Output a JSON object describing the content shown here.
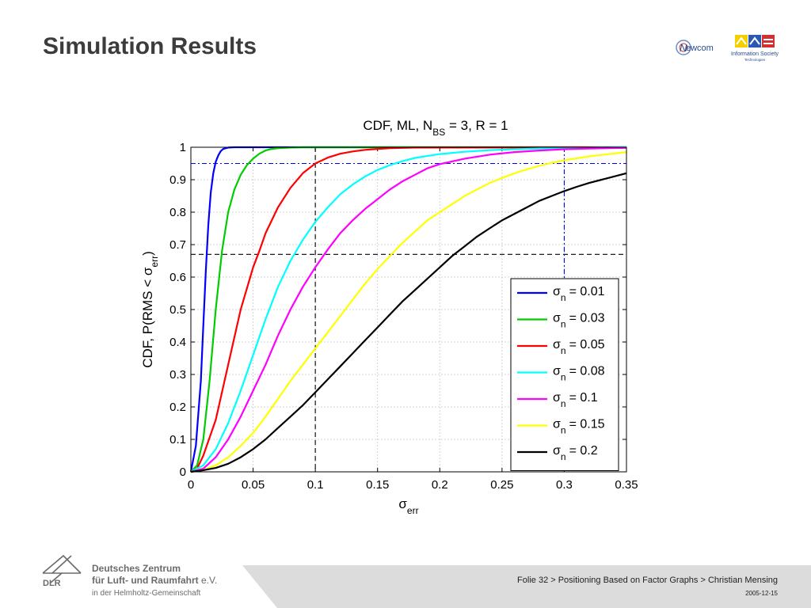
{
  "slide": {
    "title": "Simulation Results",
    "footer": "Folie 32 > Positioning Based on Factor Graphs > Christian Mensing",
    "date": "2005-12-15"
  },
  "logos": {
    "newcom_label": "ewcom",
    "newcom_initial": "N",
    "ist_line1": "Information Society",
    "ist_line2": "Technologies"
  },
  "dlr": {
    "abbr": "DLR",
    "line1": "Deutsches Zentrum",
    "line2": "für Luft- und Raumfahrt",
    "line2_suffix": " e.V.",
    "line3": "in der Helmholtz-Gemeinschaft"
  },
  "colors": {
    "title": "#3c3c3c",
    "footer_band": "#dcdcdc"
  },
  "chart_data": {
    "type": "line",
    "title_parts": [
      "CDF, ML, N",
      "BS",
      " = 3, R = 1"
    ],
    "xlabel_parts": [
      "σ",
      "err"
    ],
    "ylabel_parts": [
      "CDF, P(RMS < σ",
      "err",
      ")"
    ],
    "xlim": [
      0,
      0.35
    ],
    "ylim": [
      0,
      1
    ],
    "xticks": [
      0,
      0.05,
      0.1,
      0.15,
      0.2,
      0.25,
      0.3,
      0.35
    ],
    "xtick_labels": [
      "0",
      "0.05",
      "0.1",
      "0.15",
      "0.2",
      "0.25",
      "0.3",
      "0.35"
    ],
    "yticks": [
      0,
      0.1,
      0.2,
      0.3,
      0.4,
      0.5,
      0.6,
      0.7,
      0.8,
      0.9,
      1
    ],
    "ytick_labels": [
      "0",
      "0.1",
      "0.2",
      "0.3",
      "0.4",
      "0.5",
      "0.6",
      "0.7",
      "0.8",
      "0.9",
      "1"
    ],
    "grid": true,
    "legend_position": "lower-right",
    "legend_symbol": "σ",
    "legend_subscript": "n",
    "series": [
      {
        "name": "= 0.01",
        "color": "#0000ff",
        "x": [
          0,
          0.004,
          0.008,
          0.01,
          0.012,
          0.014,
          0.016,
          0.018,
          0.02,
          0.022,
          0.024,
          0.026,
          0.03,
          0.035,
          0.05,
          0.35
        ],
        "y": [
          0,
          0.08,
          0.28,
          0.45,
          0.62,
          0.76,
          0.86,
          0.92,
          0.955,
          0.975,
          0.988,
          0.995,
          0.999,
          1,
          1,
          1
        ]
      },
      {
        "name": "= 0.03",
        "color": "#00cc00",
        "x": [
          0,
          0.005,
          0.01,
          0.015,
          0.02,
          0.025,
          0.03,
          0.035,
          0.04,
          0.045,
          0.05,
          0.055,
          0.06,
          0.065,
          0.07,
          0.08,
          0.09,
          0.1,
          0.35
        ],
        "y": [
          0,
          0.02,
          0.1,
          0.28,
          0.5,
          0.68,
          0.8,
          0.87,
          0.915,
          0.945,
          0.965,
          0.98,
          0.99,
          0.995,
          0.997,
          0.999,
          1,
          1,
          1
        ]
      },
      {
        "name": "= 0.05",
        "color": "#ff0000",
        "x": [
          0,
          0.005,
          0.01,
          0.02,
          0.03,
          0.04,
          0.05,
          0.055,
          0.06,
          0.07,
          0.08,
          0.09,
          0.1,
          0.11,
          0.12,
          0.13,
          0.14,
          0.15,
          0.16,
          0.17,
          0.18,
          0.35
        ],
        "y": [
          0,
          0.01,
          0.05,
          0.16,
          0.33,
          0.5,
          0.63,
          0.68,
          0.735,
          0.815,
          0.875,
          0.92,
          0.95,
          0.968,
          0.98,
          0.987,
          0.992,
          0.995,
          0.997,
          0.998,
          0.999,
          1
        ]
      },
      {
        "name": "= 0.08",
        "color": "#00ffff",
        "x": [
          0,
          0.01,
          0.02,
          0.03,
          0.04,
          0.05,
          0.06,
          0.07,
          0.08,
          0.09,
          0.1,
          0.11,
          0.12,
          0.13,
          0.14,
          0.15,
          0.16,
          0.17,
          0.18,
          0.2,
          0.22,
          0.24,
          0.26,
          0.28,
          0.3,
          0.35
        ],
        "y": [
          0,
          0.02,
          0.07,
          0.15,
          0.25,
          0.36,
          0.47,
          0.57,
          0.65,
          0.715,
          0.77,
          0.815,
          0.855,
          0.885,
          0.91,
          0.93,
          0.945,
          0.957,
          0.967,
          0.979,
          0.986,
          0.991,
          0.994,
          0.996,
          0.998,
          1
        ]
      },
      {
        "name": "= 0.1",
        "color": "#ff00ff",
        "x": [
          0,
          0.01,
          0.02,
          0.03,
          0.04,
          0.05,
          0.06,
          0.07,
          0.08,
          0.09,
          0.1,
          0.11,
          0.12,
          0.13,
          0.14,
          0.15,
          0.16,
          0.17,
          0.18,
          0.19,
          0.2,
          0.22,
          0.24,
          0.26,
          0.28,
          0.3,
          0.32,
          0.35
        ],
        "y": [
          0,
          0.01,
          0.045,
          0.1,
          0.17,
          0.25,
          0.33,
          0.42,
          0.5,
          0.57,
          0.63,
          0.685,
          0.735,
          0.775,
          0.81,
          0.84,
          0.87,
          0.895,
          0.915,
          0.935,
          0.948,
          0.965,
          0.977,
          0.985,
          0.99,
          0.994,
          0.996,
          0.998
        ]
      },
      {
        "name": "= 0.15",
        "color": "#ffff00",
        "x": [
          0,
          0.01,
          0.02,
          0.03,
          0.04,
          0.05,
          0.06,
          0.07,
          0.08,
          0.09,
          0.1,
          0.11,
          0.12,
          0.13,
          0.14,
          0.15,
          0.16,
          0.17,
          0.18,
          0.19,
          0.2,
          0.21,
          0.22,
          0.23,
          0.24,
          0.25,
          0.26,
          0.27,
          0.28,
          0.29,
          0.3,
          0.32,
          0.35
        ],
        "y": [
          0,
          0.005,
          0.02,
          0.045,
          0.08,
          0.12,
          0.17,
          0.225,
          0.28,
          0.33,
          0.38,
          0.43,
          0.48,
          0.53,
          0.58,
          0.625,
          0.665,
          0.705,
          0.74,
          0.775,
          0.8,
          0.825,
          0.85,
          0.87,
          0.89,
          0.905,
          0.92,
          0.932,
          0.943,
          0.952,
          0.96,
          0.972,
          0.985
        ]
      },
      {
        "name": "= 0.2",
        "color": "#000000",
        "x": [
          0,
          0.01,
          0.02,
          0.03,
          0.04,
          0.05,
          0.06,
          0.07,
          0.08,
          0.09,
          0.1,
          0.11,
          0.12,
          0.13,
          0.14,
          0.15,
          0.16,
          0.17,
          0.18,
          0.19,
          0.2,
          0.21,
          0.22,
          0.23,
          0.24,
          0.25,
          0.26,
          0.27,
          0.28,
          0.29,
          0.3,
          0.31,
          0.32,
          0.33,
          0.34,
          0.35
        ],
        "y": [
          0,
          0.005,
          0.012,
          0.025,
          0.045,
          0.07,
          0.1,
          0.135,
          0.17,
          0.205,
          0.245,
          0.285,
          0.325,
          0.365,
          0.405,
          0.445,
          0.485,
          0.525,
          0.56,
          0.595,
          0.63,
          0.665,
          0.695,
          0.725,
          0.75,
          0.775,
          0.795,
          0.815,
          0.835,
          0.85,
          0.865,
          0.878,
          0.89,
          0.9,
          0.91,
          0.92
        ]
      }
    ],
    "reference_lines": [
      {
        "orientation": "vertical",
        "x": 0.1,
        "color": "#000000"
      },
      {
        "orientation": "horizontal",
        "y": 0.67,
        "color": "#000000"
      },
      {
        "orientation": "vertical",
        "x": 0.3,
        "color": "#0000ff"
      },
      {
        "orientation": "horizontal",
        "y": 0.95,
        "color": "#0000ff"
      }
    ]
  }
}
